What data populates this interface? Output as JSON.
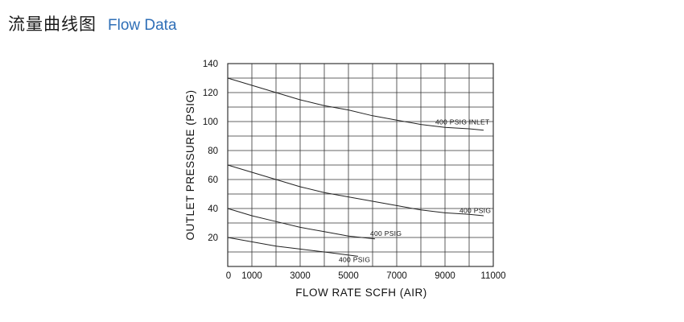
{
  "header": {
    "title_cn": "流量曲线图",
    "title_en": "Flow Data"
  },
  "chart_data": {
    "type": "line",
    "title": "Flow Data",
    "xlabel": "FLOW  RATE  SCFH (AIR)",
    "ylabel": "OUTLET  PRESSURE (PSIG)",
    "xlim": [
      0,
      11000
    ],
    "ylim": [
      0,
      140
    ],
    "grid": true,
    "x_ticks": [
      "0",
      "1000",
      "3000",
      "5000",
      "7000",
      "9000",
      "11000"
    ],
    "x_tick_values": [
      0,
      1000,
      3000,
      5000,
      7000,
      9000,
      11000
    ],
    "y_ticks": [
      "20",
      "40",
      "60",
      "80",
      "100",
      "120",
      "140"
    ],
    "y_tick_values": [
      20,
      40,
      60,
      80,
      100,
      120,
      140
    ],
    "series": [
      {
        "name": "400  PSIG  INLET",
        "x": [
          0,
          1000,
          2000,
          3000,
          4000,
          5000,
          6000,
          7000,
          8000,
          9000,
          10000,
          10600
        ],
        "y": [
          130,
          125,
          120,
          115,
          111,
          108,
          104,
          101,
          98,
          96,
          95,
          94
        ]
      },
      {
        "name": "400  PSIG",
        "x": [
          0,
          1000,
          2000,
          3000,
          4000,
          5000,
          6000,
          7000,
          8000,
          9000,
          10000,
          10600
        ],
        "y": [
          70,
          65,
          60,
          55,
          51,
          48,
          45,
          42,
          39,
          37,
          36,
          35
        ]
      },
      {
        "name": "400  PSIG",
        "x": [
          0,
          1000,
          2000,
          3000,
          4000,
          5000,
          6100
        ],
        "y": [
          40,
          35,
          31,
          27,
          24,
          21,
          19
        ]
      },
      {
        "name": "400  PSIG",
        "x": [
          0,
          1000,
          2000,
          3000,
          4000,
          5400
        ],
        "y": [
          20,
          17,
          14,
          12,
          10,
          7
        ]
      }
    ],
    "annotations": [
      {
        "text": "400  PSIG  INLET",
        "x": 8600,
        "y": 98
      },
      {
        "text": "400  PSIG",
        "x": 9600,
        "y": 37
      },
      {
        "text": "400  PSIG",
        "x": 5900,
        "y": 21
      },
      {
        "text": "400  PSIG",
        "x": 4600,
        "y": 3
      }
    ]
  }
}
